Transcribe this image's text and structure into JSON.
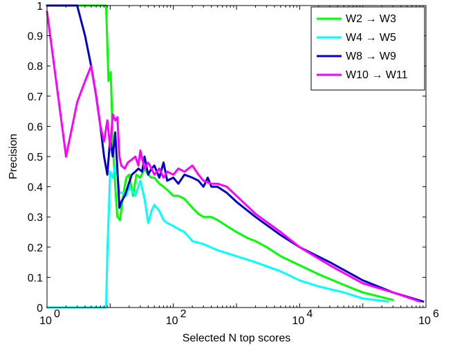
{
  "chart_data": {
    "type": "line",
    "xlabel": "Selected N top scores",
    "ylabel": "Precision",
    "xscale": "log",
    "xlim": [
      1,
      1000000
    ],
    "ylim": [
      0,
      1
    ],
    "grid": false,
    "legend_position": "top-right",
    "x_ticks": [
      {
        "value": 1,
        "base": "10",
        "exp": "0"
      },
      {
        "value": 100,
        "base": "10",
        "exp": "2"
      },
      {
        "value": 10000,
        "base": "10",
        "exp": "4"
      },
      {
        "value": 1000000,
        "base": "10",
        "exp": "6"
      }
    ],
    "y_ticks": [
      {
        "value": 0,
        "label": "0"
      },
      {
        "value": 0.1,
        "label": "0.1"
      },
      {
        "value": 0.2,
        "label": "0.2"
      },
      {
        "value": 0.3,
        "label": "0.3"
      },
      {
        "value": 0.4,
        "label": "0.4"
      },
      {
        "value": 0.5,
        "label": "0.5"
      },
      {
        "value": 0.6,
        "label": "0.6"
      },
      {
        "value": 0.7,
        "label": "0.7"
      },
      {
        "value": 0.8,
        "label": "0.8"
      },
      {
        "value": 0.9,
        "label": "0.9"
      },
      {
        "value": 1,
        "label": "1"
      }
    ],
    "series": [
      {
        "name": "W2 → W3",
        "color": "#00ff00",
        "x": [
          1,
          5,
          8.6,
          9.4,
          10.2,
          11,
          12,
          13,
          14.3,
          16,
          18,
          20,
          23,
          26,
          30,
          35,
          40,
          45,
          50,
          60,
          70,
          80,
          100,
          120,
          150,
          200,
          250,
          300,
          400,
          500,
          700,
          1000,
          1500,
          2000,
          3000,
          5000,
          10000,
          20000,
          50000,
          100000,
          300000
        ],
        "y": [
          1,
          1,
          1,
          0.75,
          0.78,
          0.55,
          0.4,
          0.3,
          0.29,
          0.37,
          0.43,
          0.44,
          0.37,
          0.44,
          0.43,
          0.46,
          0.44,
          0.43,
          0.43,
          0.41,
          0.4,
          0.39,
          0.37,
          0.37,
          0.36,
          0.33,
          0.31,
          0.3,
          0.3,
          0.29,
          0.27,
          0.25,
          0.23,
          0.22,
          0.2,
          0.17,
          0.14,
          0.11,
          0.075,
          0.05,
          0.025
        ]
      },
      {
        "name": "W4 → W5",
        "color": "#00ffff",
        "x": [
          1,
          2,
          4,
          8.6,
          9,
          10,
          11,
          12,
          13,
          14,
          16,
          18,
          20,
          25,
          30,
          35,
          40,
          45,
          50,
          55,
          60,
          70,
          80,
          100,
          120,
          150,
          200,
          300,
          500,
          1000,
          2000,
          5000,
          10000,
          20000,
          50000,
          100000,
          250000
        ],
        "y": [
          0,
          0,
          0,
          0,
          0.18,
          0.45,
          0.43,
          0.47,
          0.44,
          0.38,
          0.38,
          0.37,
          0.4,
          0.37,
          0.42,
          0.36,
          0.28,
          0.32,
          0.34,
          0.33,
          0.32,
          0.29,
          0.28,
          0.27,
          0.26,
          0.25,
          0.22,
          0.21,
          0.19,
          0.17,
          0.15,
          0.12,
          0.09,
          0.07,
          0.05,
          0.03,
          0.02
        ]
      },
      {
        "name": "W8 → W9",
        "color": "#0000cc",
        "x": [
          1,
          3,
          4,
          5,
          6,
          7,
          8,
          9,
          10,
          11,
          12,
          13,
          14,
          15,
          17,
          19,
          22,
          25,
          28,
          32,
          35,
          40,
          45,
          50,
          60,
          70,
          80,
          100,
          120,
          150,
          200,
          250,
          300,
          350,
          400,
          500,
          700,
          1000,
          2000,
          5000,
          10000,
          30000,
          100000,
          300000,
          900000
        ],
        "y": [
          1,
          1,
          0.9,
          0.8,
          0.7,
          0.6,
          0.5,
          0.44,
          0.56,
          0.5,
          0.58,
          0.46,
          0.33,
          0.35,
          0.37,
          0.4,
          0.44,
          0.45,
          0.46,
          0.45,
          0.5,
          0.44,
          0.46,
          0.47,
          0.43,
          0.48,
          0.42,
          0.43,
          0.41,
          0.44,
          0.43,
          0.42,
          0.4,
          0.43,
          0.4,
          0.4,
          0.38,
          0.35,
          0.3,
          0.24,
          0.2,
          0.15,
          0.09,
          0.05,
          0.02
        ]
      },
      {
        "name": "W10 → W11",
        "color": "#ff00ff",
        "x": [
          1,
          2,
          3,
          4,
          5,
          6,
          7,
          8,
          9,
          10,
          11,
          12,
          13,
          14,
          15,
          17,
          19,
          22,
          25,
          28,
          30,
          35,
          40,
          45,
          50,
          60,
          70,
          80,
          100,
          120,
          150,
          200,
          250,
          300,
          400,
          500,
          700,
          1000,
          2000,
          5000,
          10000,
          30000,
          100000,
          300000,
          800000
        ],
        "y": [
          0.98,
          0.5,
          0.68,
          0.75,
          0.8,
          0.7,
          0.6,
          0.55,
          0.62,
          0.53,
          0.64,
          0.62,
          0.63,
          0.5,
          0.47,
          0.46,
          0.48,
          0.49,
          0.5,
          0.47,
          0.52,
          0.46,
          0.48,
          0.46,
          0.44,
          0.46,
          0.43,
          0.45,
          0.44,
          0.46,
          0.45,
          0.47,
          0.44,
          0.42,
          0.41,
          0.41,
          0.4,
          0.37,
          0.31,
          0.25,
          0.2,
          0.14,
          0.08,
          0.05,
          0.02
        ]
      }
    ]
  }
}
